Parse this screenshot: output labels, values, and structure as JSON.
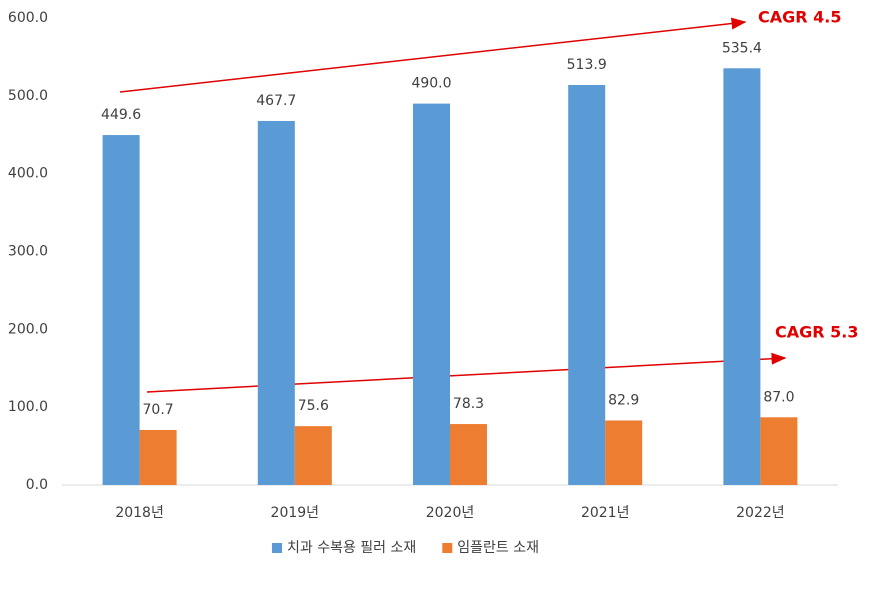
{
  "chart_data": {
    "type": "bar",
    "categories": [
      "2018년",
      "2019년",
      "2020년",
      "2021년",
      "2022년"
    ],
    "series": [
      {
        "name": "치과 수복용 필러 소재",
        "color": "#5b9bd5",
        "values": [
          449.6,
          467.7,
          490.0,
          513.9,
          535.4
        ],
        "value_labels": [
          "449.6",
          "467.7",
          "490.0",
          "513.9",
          "535.4"
        ]
      },
      {
        "name": "임플란트 소재",
        "color": "#ed7d31",
        "values": [
          70.7,
          75.6,
          78.3,
          82.9,
          87.0
        ],
        "value_labels": [
          "70.7",
          "75.6",
          "78.3",
          "82.9",
          "87.0"
        ]
      }
    ],
    "ylim": [
      0,
      600
    ],
    "yticks": [
      {
        "value": 0,
        "label": "0.0"
      },
      {
        "value": 100,
        "label": "100.0"
      },
      {
        "value": 200,
        "label": "200.0"
      },
      {
        "value": 300,
        "label": "300.0"
      },
      {
        "value": 400,
        "label": "400.0"
      },
      {
        "value": 500,
        "label": "500.0"
      },
      {
        "value": 600,
        "label": "600.0"
      }
    ],
    "grid": false,
    "legend": "bottom",
    "annotations": [
      "CAGR 4.5",
      "CAGR 5.3"
    ]
  }
}
